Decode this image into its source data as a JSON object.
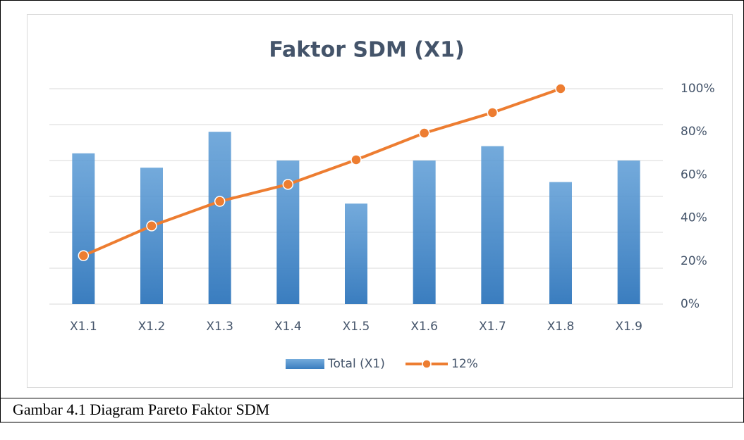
{
  "chart_data": {
    "type": "bar_line",
    "title": "Faktor SDM (X1)",
    "categories": [
      "X1.1",
      "X1.2",
      "X1.3",
      "X1.4",
      "X1.5",
      "X1.6",
      "X1.7",
      "X1.8",
      "X1.9"
    ],
    "series": [
      {
        "name": "Total (X1)",
        "color": "#5b9bd5",
        "type": "bar",
        "values": [
          4.2,
          3.8,
          4.8,
          4.0,
          2.8,
          4.0,
          4.4,
          3.4,
          4.0
        ]
      },
      {
        "name": "12%",
        "color": "#ed7d31",
        "type": "line",
        "axis": "y2",
        "values": [
          22.5,
          36.3,
          47.7,
          55.6,
          67,
          79.4,
          88.9,
          100,
          null
        ]
      }
    ],
    "ylim": [
      0,
      6
    ],
    "yticks": [
      0,
      1,
      2,
      3,
      4,
      5,
      6
    ],
    "grid": true,
    "y2lim": [
      0,
      100
    ],
    "y2ticks": [
      {
        "value": 0,
        "label": "0%"
      },
      {
        "value": 20,
        "label": "20%"
      },
      {
        "value": 40,
        "label": "40%"
      },
      {
        "value": 60,
        "label": "60%"
      },
      {
        "value": 80,
        "label": "80%"
      },
      {
        "value": 100,
        "label": "100%"
      }
    ],
    "legend": "bottom",
    "caption": "Gambar 4.1 Diagram Pareto Faktor SDM"
  }
}
